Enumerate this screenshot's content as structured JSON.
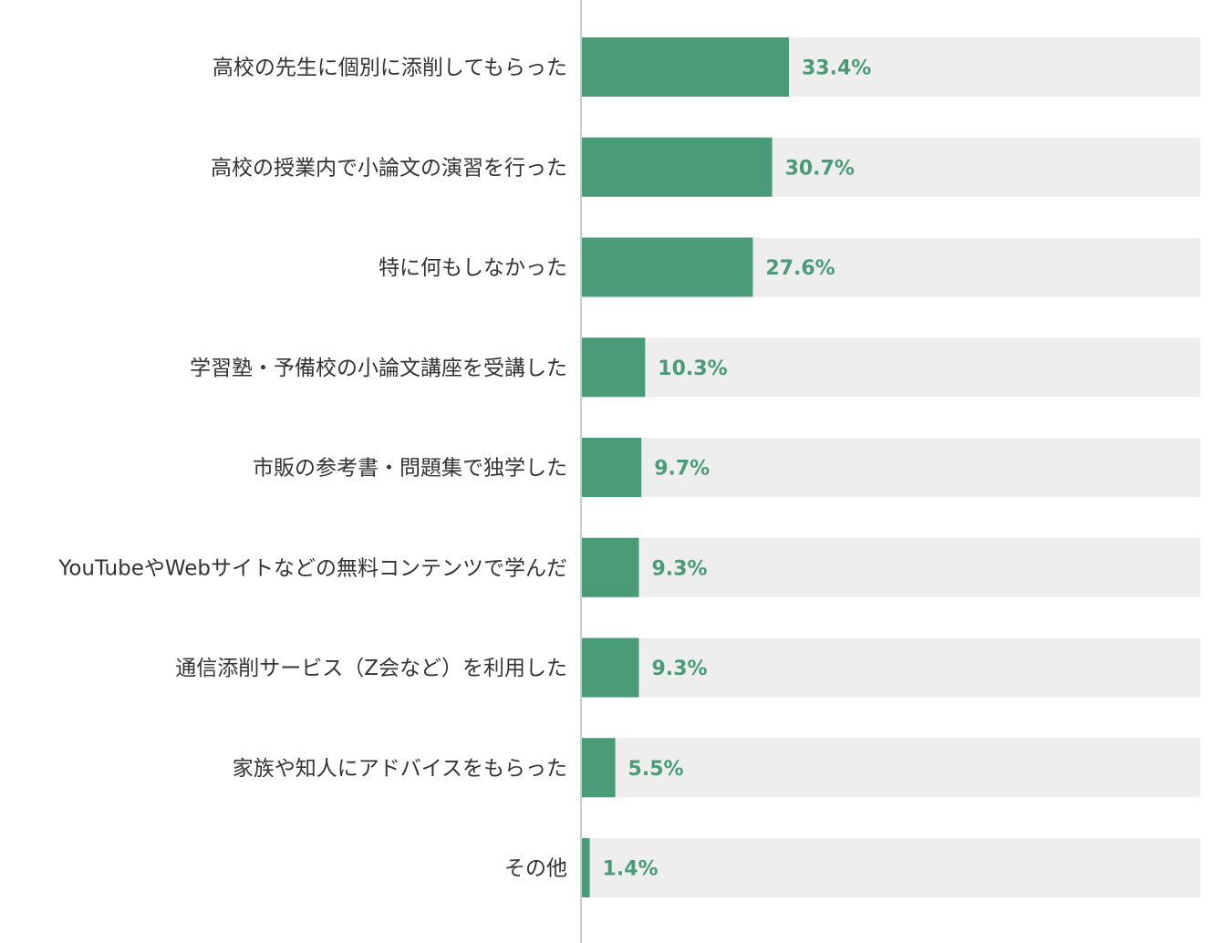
{
  "chart_data": {
    "type": "bar",
    "orientation": "horizontal",
    "categories": [
      "高校の先生に個別に添削してもらった",
      "高校の授業内で小論文の演習を行った",
      "特に何もしなかった",
      "学習塾・予備校の小論文講座を受講した",
      "市販の参考書・問題集で独学した",
      "YouTubeやWebサイトなどの無料コンテンツで学んだ",
      "通信添削サービス（Z会など）を利用した",
      "家族や知人にアドバイスをもらった",
      "その他"
    ],
    "values": [
      33.4,
      30.7,
      27.6,
      10.3,
      9.7,
      9.3,
      9.3,
      5.5,
      1.4
    ],
    "value_labels": [
      "33.4%",
      "30.7%",
      "27.6%",
      "10.3%",
      "9.7%",
      "9.3%",
      "9.3%",
      "5.5%",
      "1.4%"
    ],
    "unit": "%",
    "xlim": [
      0,
      100
    ],
    "grid": false,
    "legend": "none",
    "bar_color": "#4a9b78",
    "track_color": "#eeeeee",
    "axis_color": "#cccccc",
    "value_label_color": "#4a9b78",
    "label_color": "#333333"
  }
}
